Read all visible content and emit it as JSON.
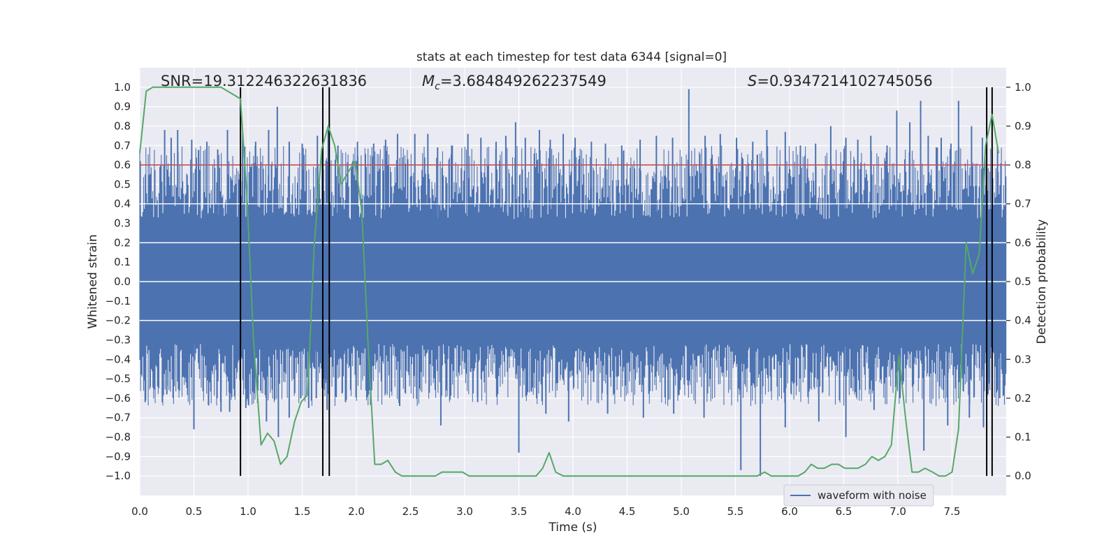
{
  "chart_data": {
    "type": "line",
    "title": "stats at each timestep for test data 6344 [signal=0]",
    "xlabel": "Time (s)",
    "ylabel": "Whitened strain",
    "ylabel_right": "Detection probability",
    "xlim": [
      0,
      8
    ],
    "ylim": [
      -1.1,
      1.1
    ],
    "ylim_right": [
      -0.05,
      1.05
    ],
    "xticks": [
      "0.0",
      "0.5",
      "1.0",
      "1.5",
      "2.0",
      "2.5",
      "3.0",
      "3.5",
      "4.0",
      "4.5",
      "5.0",
      "5.5",
      "6.0",
      "6.5",
      "7.0",
      "7.5"
    ],
    "yticks": [
      "1.0",
      "0.9",
      "0.8",
      "0.7",
      "0.6",
      "0.5",
      "0.4",
      "0.3",
      "0.2",
      "0.1",
      "0.0",
      "−0.1",
      "−0.2",
      "−0.3",
      "−0.4",
      "−0.5",
      "−0.6",
      "−0.7",
      "−0.8",
      "−0.9",
      "−1.0"
    ],
    "yticks_right": [
      "1.0",
      "0.9",
      "0.8",
      "0.7",
      "0.6",
      "0.5",
      "0.4",
      "0.3",
      "0.2",
      "0.1",
      "0.0"
    ],
    "annotations": {
      "snr": "SNR=19.312246322631836",
      "mc_symbol": "M",
      "mc_sub": "c",
      "mc_value": "=3.684849262237549",
      "s_symbol": "S",
      "s_value": "=0.9347214102745056"
    },
    "legend": [
      {
        "label": "waveform with noise",
        "color": "#4c72b0"
      }
    ],
    "threshold": 0.8,
    "event_lines_x": [
      0.93,
      1.69,
      1.75,
      7.82,
      7.87
    ],
    "strain_envelope": {
      "name": "waveform with noise",
      "color": "#4c72b0",
      "core_amplitude": 0.2,
      "spike_peaks_x": [
        0.23,
        0.29,
        0.35,
        0.48,
        0.62,
        0.72,
        0.81,
        0.95,
        1.07,
        1.19,
        1.27,
        1.38,
        1.5,
        1.64,
        1.74,
        1.83,
        2.01,
        2.16,
        2.27,
        2.38,
        2.54,
        2.66,
        2.75,
        2.88,
        3.03,
        3.15,
        3.29,
        3.38,
        3.47,
        3.56,
        3.69,
        3.79,
        3.91,
        4.02,
        4.17,
        4.3,
        4.45,
        4.62,
        4.77,
        4.92,
        5.07,
        5.22,
        5.36,
        5.51,
        5.66,
        5.79,
        5.96,
        6.1,
        6.24,
        6.38,
        6.52,
        6.63,
        6.75,
        6.9,
        6.99,
        7.11,
        7.21,
        7.28,
        7.4,
        7.49,
        7.56,
        7.68,
        7.78,
        7.92
      ],
      "spike_peaks_y": [
        0.78,
        0.74,
        0.78,
        0.73,
        0.72,
        0.68,
        0.78,
        0.76,
        0.72,
        0.78,
        0.9,
        0.72,
        0.71,
        0.75,
        0.78,
        0.7,
        0.72,
        0.71,
        0.73,
        0.76,
        0.76,
        0.76,
        0.69,
        0.7,
        0.76,
        0.74,
        0.72,
        0.75,
        0.82,
        0.74,
        0.78,
        0.73,
        0.76,
        0.74,
        0.72,
        0.71,
        0.7,
        0.73,
        0.75,
        0.74,
        0.99,
        0.75,
        0.76,
        0.74,
        0.72,
        0.78,
        0.77,
        0.7,
        0.71,
        0.8,
        0.74,
        0.73,
        0.75,
        0.7,
        0.88,
        0.82,
        0.93,
        0.75,
        0.74,
        0.71,
        0.93,
        0.8,
        0.74,
        0.7
      ],
      "dip_x": [
        0.05,
        0.25,
        0.5,
        0.75,
        0.83,
        0.98,
        1.17,
        1.28,
        1.38,
        1.56,
        1.63,
        1.73,
        1.9,
        2.4,
        2.78,
        3.12,
        3.5,
        3.75,
        3.96,
        4.32,
        4.65,
        4.93,
        5.21,
        5.55,
        5.73,
        5.96,
        6.27,
        6.52,
        6.78,
        7.02,
        7.24,
        7.46,
        7.66,
        7.79,
        7.94
      ],
      "dip_y": [
        -0.62,
        -0.58,
        -0.76,
        -0.67,
        -0.67,
        -0.65,
        -0.72,
        -0.8,
        -0.7,
        -0.65,
        -0.6,
        -0.66,
        -0.62,
        -0.64,
        -0.74,
        -0.62,
        -0.88,
        -0.68,
        -0.72,
        -0.68,
        -0.7,
        -0.68,
        -0.7,
        -0.97,
        -1.0,
        -0.75,
        -0.72,
        -0.8,
        -0.66,
        -0.6,
        -0.87,
        -0.74,
        -0.7,
        -0.75,
        -0.6
      ]
    },
    "probability_series": {
      "name": "detection probability",
      "color": "#55a868",
      "x": [
        0.0,
        0.06,
        0.12,
        0.19,
        0.25,
        0.31,
        0.37,
        0.44,
        0.5,
        0.56,
        0.62,
        0.69,
        0.75,
        0.81,
        0.87,
        0.93,
        0.99,
        1.05,
        1.12,
        1.18,
        1.24,
        1.3,
        1.36,
        1.43,
        1.49,
        1.55,
        1.61,
        1.68,
        1.74,
        1.8,
        1.86,
        1.92,
        1.99,
        2.05,
        2.11,
        2.17,
        2.23,
        2.29,
        2.36,
        2.42,
        2.48,
        2.54,
        2.6,
        2.67,
        2.73,
        2.79,
        2.85,
        2.91,
        2.98,
        3.04,
        3.1,
        3.16,
        3.22,
        3.29,
        3.35,
        3.41,
        3.47,
        3.53,
        3.6,
        3.66,
        3.72,
        3.78,
        3.84,
        3.91,
        3.97,
        4.03,
        4.09,
        4.15,
        4.22,
        4.28,
        4.34,
        4.4,
        4.46,
        4.53,
        4.59,
        4.65,
        4.71,
        4.77,
        4.84,
        4.9,
        4.96,
        5.02,
        5.08,
        5.15,
        5.21,
        5.27,
        5.33,
        5.39,
        5.46,
        5.52,
        5.58,
        5.64,
        5.7,
        5.77,
        5.83,
        5.89,
        5.95,
        6.01,
        6.08,
        6.14,
        6.2,
        6.26,
        6.32,
        6.39,
        6.45,
        6.51,
        6.57,
        6.63,
        6.7,
        6.76,
        6.82,
        6.88,
        6.94,
        7.01,
        7.07,
        7.13,
        7.19,
        7.25,
        7.32,
        7.38,
        7.44,
        7.5,
        7.56,
        7.63,
        7.69,
        7.75,
        7.81,
        7.87,
        7.93
      ],
      "y": [
        0.83,
        0.99,
        1.0,
        1.0,
        1.0,
        1.0,
        1.0,
        1.0,
        1.0,
        1.0,
        1.0,
        1.0,
        1.0,
        0.99,
        0.98,
        0.97,
        0.72,
        0.35,
        0.08,
        0.11,
        0.09,
        0.03,
        0.05,
        0.14,
        0.19,
        0.21,
        0.59,
        0.84,
        0.9,
        0.85,
        0.75,
        0.78,
        0.81,
        0.68,
        0.33,
        0.03,
        0.03,
        0.04,
        0.01,
        0.0,
        0.0,
        0.0,
        0.0,
        0.0,
        0.0,
        0.01,
        0.01,
        0.01,
        0.01,
        0.0,
        0.0,
        0.0,
        0.0,
        0.0,
        0.0,
        0.0,
        0.0,
        0.0,
        0.0,
        0.0,
        0.02,
        0.06,
        0.01,
        0.0,
        0.0,
        0.0,
        0.0,
        0.0,
        0.0,
        0.0,
        0.0,
        0.0,
        0.0,
        0.0,
        0.0,
        0.0,
        0.0,
        0.0,
        0.0,
        0.0,
        0.0,
        0.0,
        0.0,
        0.0,
        0.0,
        0.0,
        0.0,
        0.0,
        0.0,
        0.0,
        0.0,
        0.0,
        0.0,
        0.01,
        0.0,
        0.0,
        0.0,
        0.0,
        0.0,
        0.01,
        0.03,
        0.02,
        0.02,
        0.03,
        0.03,
        0.02,
        0.02,
        0.02,
        0.03,
        0.05,
        0.04,
        0.05,
        0.08,
        0.31,
        0.15,
        0.01,
        0.01,
        0.02,
        0.01,
        0.0,
        0.0,
        0.01,
        0.12,
        0.6,
        0.52,
        0.57,
        0.85,
        0.93,
        0.83
      ]
    }
  }
}
